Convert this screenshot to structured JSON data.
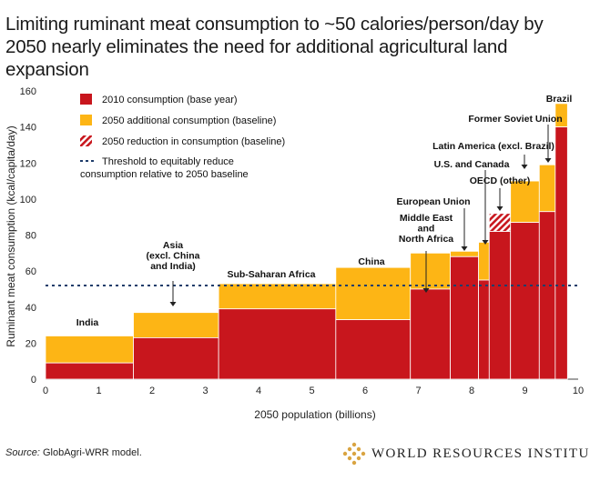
{
  "title": "Limiting ruminant meat consumption to ~50 calories/person/day by 2050 nearly eliminates the need for additional agricultural land expansion",
  "source": {
    "label": "Source:",
    "text": " GlobAgri-WRR model."
  },
  "logo": {
    "text": "WORLD RESOURCES INSTITUTE",
    "icon": "wri-logo-icon"
  },
  "colors": {
    "base": "#c8161d",
    "additional": "#fdb515",
    "reduction": "#c8161d",
    "threshold": "#1f3d6b"
  },
  "chart_data": {
    "type": "bar",
    "variant": "variable-width stacked bar (marimekko)",
    "xlabel": "2050 population (billions)",
    "ylabel": "Ruminant meat consumption (kcal/capita/day)",
    "xlim": [
      0,
      10
    ],
    "ylim": [
      0,
      160
    ],
    "xticks": [
      0,
      1,
      2,
      3,
      4,
      5,
      6,
      7,
      8,
      9,
      10
    ],
    "yticks": [
      0,
      20,
      40,
      60,
      80,
      100,
      120,
      140,
      160
    ],
    "threshold": 52,
    "legend": {
      "placement": "top-left",
      "items": [
        {
          "key": "base",
          "label": "2010 consumption (base year)"
        },
        {
          "key": "additional",
          "label": "2050 additional consumption (baseline)"
        },
        {
          "key": "reduction",
          "label": "2050 reduction in consumption (baseline)"
        },
        {
          "key": "threshold",
          "label": "Threshold to equitably reduce consumption relative to 2050 baseline"
        }
      ]
    },
    "regions": [
      {
        "name": "India",
        "x0": 0.0,
        "x1": 1.65,
        "base": 9,
        "total": 24
      },
      {
        "name": "Asia (excl. China and India)",
        "x0": 1.65,
        "x1": 3.25,
        "base": 23,
        "total": 37
      },
      {
        "name": "Sub-Saharan Africa",
        "x0": 3.25,
        "x1": 5.45,
        "base": 39,
        "total": 53
      },
      {
        "name": "China",
        "x0": 5.45,
        "x1": 6.85,
        "base": 33,
        "total": 62
      },
      {
        "name": "Middle East and North Africa",
        "x0": 6.85,
        "x1": 7.6,
        "base": 50,
        "total": 70
      },
      {
        "name": "European Union",
        "x0": 7.6,
        "x1": 8.13,
        "base": 68,
        "total": 71
      },
      {
        "name": "U.S. and Canada",
        "x0": 8.13,
        "x1": 8.33,
        "base": 55,
        "total": 76
      },
      {
        "name": "OECD (other)",
        "x0": 8.33,
        "x1": 8.73,
        "base": 82,
        "total": 92,
        "reduction": true
      },
      {
        "name": "Latin America (excl. Brazil)",
        "x0": 8.73,
        "x1": 9.27,
        "base": 87,
        "total": 110
      },
      {
        "name": "Former Soviet Union",
        "x0": 9.27,
        "x1": 9.57,
        "base": 93,
        "total": 119
      },
      {
        "name": "Brazil",
        "x0": 9.57,
        "x1": 9.8,
        "base": 140,
        "total": 153
      }
    ],
    "annotations": [
      {
        "lines": [
          "India"
        ]
      },
      {
        "lines": [
          "Asia",
          "(excl. China",
          "and India)"
        ]
      },
      {
        "lines": [
          "Sub-Saharan Africa"
        ]
      },
      {
        "lines": [
          "China"
        ]
      },
      {
        "lines": [
          "Middle East",
          "and",
          "North Africa"
        ]
      },
      {
        "lines": [
          "European Union"
        ]
      },
      {
        "lines": [
          "OECD (other)"
        ]
      },
      {
        "lines": [
          "U.S. and Canada"
        ]
      },
      {
        "lines": [
          "Latin America (excl. Brazil)"
        ]
      },
      {
        "lines": [
          "Former Soviet Union"
        ]
      },
      {
        "lines": [
          "Brazil"
        ]
      }
    ]
  }
}
